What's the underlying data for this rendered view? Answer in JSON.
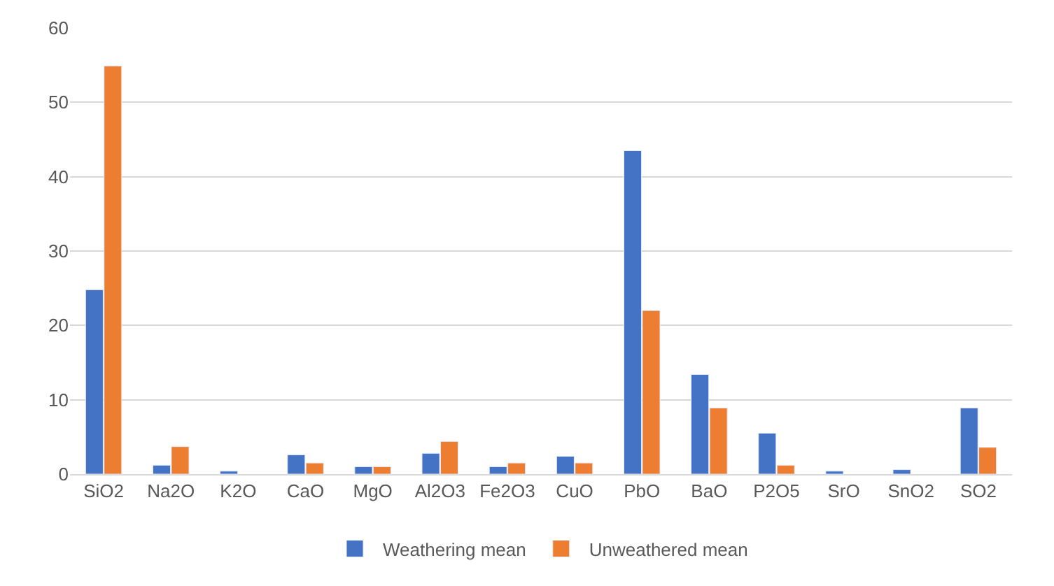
{
  "chart_data": {
    "type": "bar",
    "categories": [
      "SiO2",
      "Na2O",
      "K2O",
      "CaO",
      "MgO",
      "Al2O3",
      "Fe2O3",
      "CuO",
      "PbO",
      "BaO",
      "P2O5",
      "SrO",
      "SnO2",
      "SO2"
    ],
    "series": [
      {
        "name": "Weathering mean",
        "color": "#4472c4",
        "values": [
          24.8,
          1.2,
          0.4,
          2.6,
          1.0,
          2.8,
          1.0,
          2.4,
          43.5,
          13.4,
          5.5,
          0.4,
          0.6,
          8.9
        ]
      },
      {
        "name": "Unweathered mean",
        "color": "#ed7d31",
        "values": [
          54.9,
          3.7,
          null,
          1.5,
          1.0,
          4.4,
          1.5,
          1.5,
          22.0,
          8.9,
          1.2,
          null,
          null,
          3.6
        ]
      }
    ],
    "ylim": [
      0,
      60
    ],
    "yticks": [
      0,
      10,
      20,
      30,
      40,
      50,
      60
    ],
    "grid": "y",
    "legend": "bottom"
  }
}
